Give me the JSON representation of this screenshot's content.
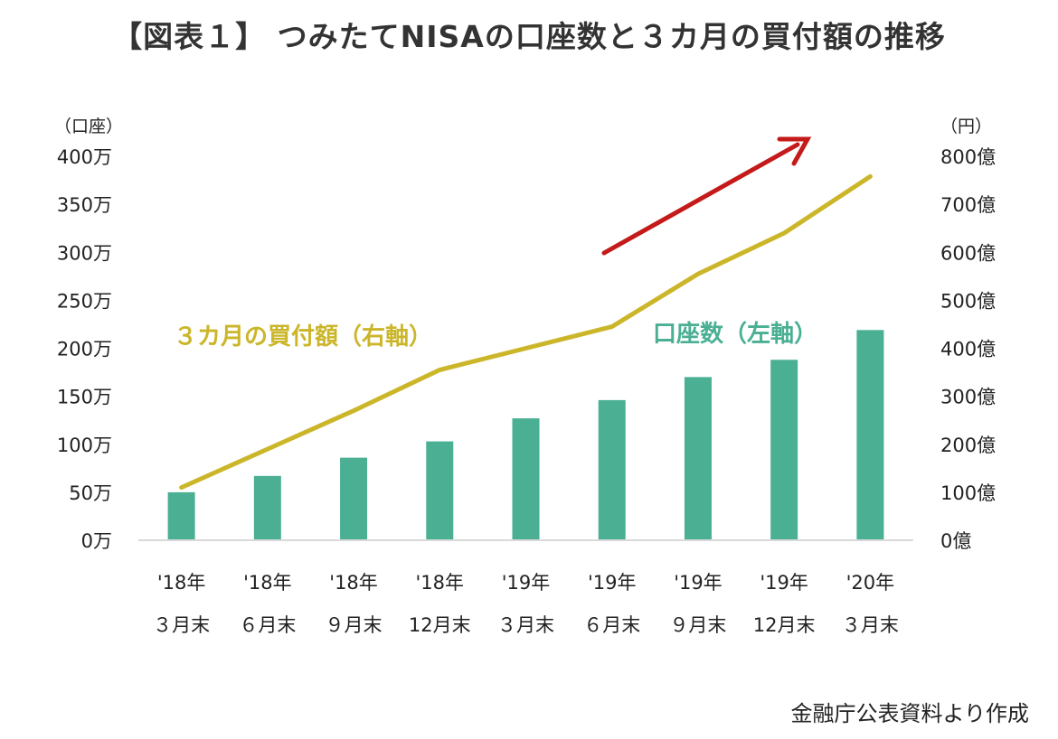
{
  "title": "【図表１】 つみたてNISAの口座数と３カ月の買付額の推移",
  "source": "金融庁公表資料より作成",
  "colors": {
    "bar": "#4aaf93",
    "line": "#cbb62a",
    "arrow": "#c41a1a",
    "axis": "#d9d9d9",
    "text": "#222222"
  },
  "chart_data": {
    "type": "bar+line",
    "categories": [
      [
        "'18年",
        "３月末"
      ],
      [
        "'18年",
        "６月末"
      ],
      [
        "'18年",
        "９月末"
      ],
      [
        "'18年",
        "12月末"
      ],
      [
        "'19年",
        "３月末"
      ],
      [
        "'19年",
        "６月末"
      ],
      [
        "'19年",
        "９月末"
      ],
      [
        "'19年",
        "12月末"
      ],
      [
        "'20年",
        "３月末"
      ]
    ],
    "left_axis": {
      "unit_label": "（口座）",
      "ticks": [
        "0万",
        "50万",
        "100万",
        "150万",
        "200万",
        "250万",
        "300万",
        "350万",
        "400万"
      ],
      "ylim": [
        0,
        4000000
      ]
    },
    "right_axis": {
      "unit_label": "（円）",
      "ticks": [
        "0億",
        "100億",
        "200億",
        "300億",
        "400億",
        "500億",
        "600億",
        "700億",
        "800億"
      ],
      "ylim": [
        0,
        80000000000
      ]
    },
    "series": [
      {
        "name": "口座数（左軸）",
        "type": "bar",
        "axis": "left",
        "values": [
          500000,
          670000,
          860000,
          1030000,
          1270000,
          1460000,
          1700000,
          1880000,
          2190000
        ]
      },
      {
        "name": "３カ月の買付額（右軸）",
        "type": "line",
        "axis": "right",
        "values": [
          11000000000,
          19000000000,
          27000000000,
          35500000000,
          40000000000,
          44500000000,
          55500000000,
          64000000000,
          75800000000
        ]
      }
    ]
  }
}
